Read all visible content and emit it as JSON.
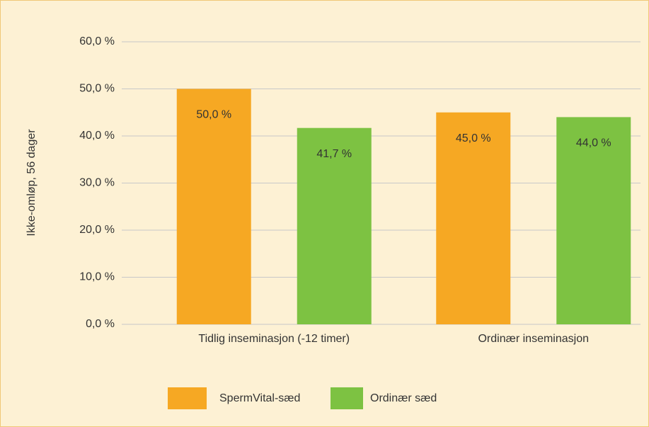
{
  "chart_data": {
    "type": "bar",
    "y_label": "Ikke-omløp, 56 dager",
    "categories": [
      "Tidlig inseminasjon (-12 timer)",
      "Ordinær inseminasjon"
    ],
    "series": [
      {
        "name": "SpermVital-sæd",
        "color": "#f6a823",
        "values": [
          50.0,
          45.0
        ],
        "value_labels": [
          "50,0 %",
          "45,0 %"
        ]
      },
      {
        "name": "Ordinær sæd",
        "color": "#7dc242",
        "values": [
          41.7,
          44.0
        ],
        "value_labels": [
          "41,7 %",
          "44,0 %"
        ]
      }
    ],
    "ylim": [
      0,
      60
    ],
    "yticks": [
      {
        "value": 0,
        "label": "0,0 %"
      },
      {
        "value": 10,
        "label": "10,0 %"
      },
      {
        "value": 20,
        "label": "20,0 %"
      },
      {
        "value": 30,
        "label": "30,0 %"
      },
      {
        "value": 40,
        "label": "40,0 %"
      },
      {
        "value": 50,
        "label": "50,0 %"
      },
      {
        "value": 60,
        "label": "60,0 %"
      }
    ],
    "grid": true,
    "legend": "bottom"
  }
}
